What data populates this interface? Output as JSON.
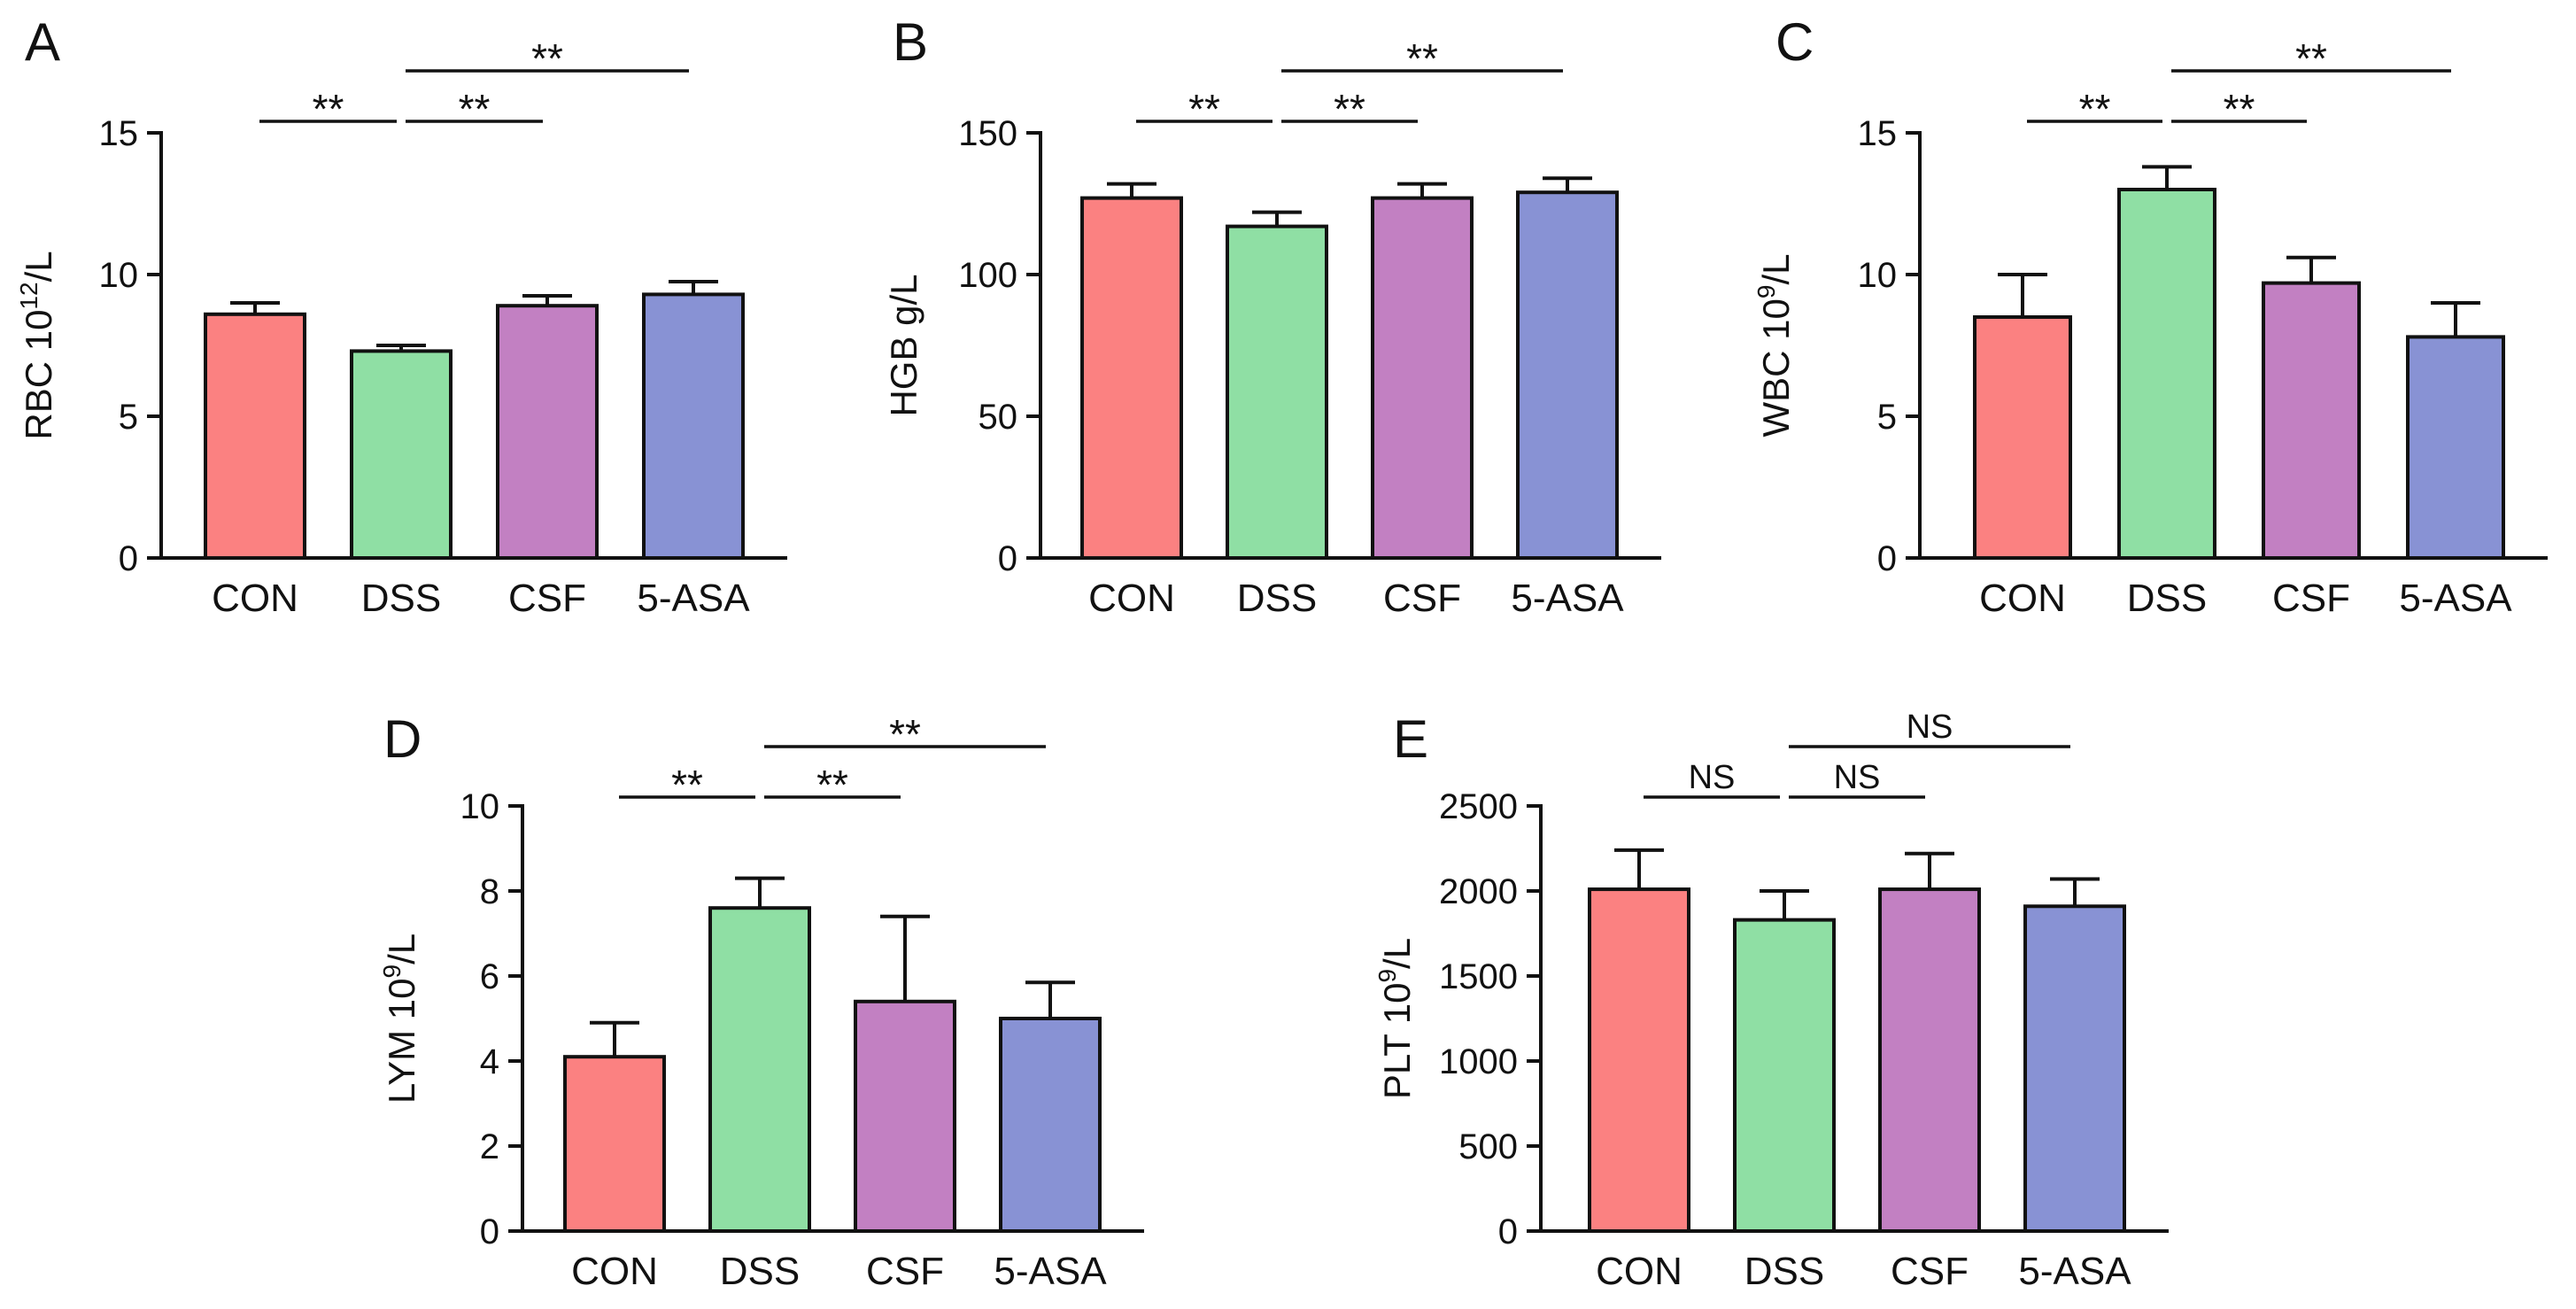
{
  "colors": {
    "CON": "#fb8181",
    "DSS": "#8fdfa4",
    "CSF": "#c280c2",
    "5-ASA": "#8892d4",
    "axis": "#111111"
  },
  "chart_data": [
    {
      "panel": "A",
      "type": "bar",
      "categories": [
        "CON",
        "DSS",
        "CSF",
        "5-ASA"
      ],
      "values": [
        8.6,
        7.3,
        8.9,
        9.3
      ],
      "errors": [
        0.4,
        0.2,
        0.35,
        0.45
      ],
      "ylabel_main": "RBC 10",
      "ylabel_sup": "12",
      "ylabel_tail": "/L",
      "ylim": [
        0,
        15
      ],
      "yticks": [
        0,
        5,
        10,
        15
      ],
      "significance": [
        {
          "from": 0,
          "to": 1,
          "label": "**",
          "level": 1
        },
        {
          "from": 1,
          "to": 2,
          "label": "**",
          "level": 1
        },
        {
          "from": 1,
          "to": 3,
          "label": "**",
          "level": 2
        }
      ]
    },
    {
      "panel": "B",
      "type": "bar",
      "categories": [
        "CON",
        "DSS",
        "CSF",
        "5-ASA"
      ],
      "values": [
        127,
        117,
        127,
        129
      ],
      "errors": [
        5,
        5,
        5,
        5
      ],
      "ylabel_main": "HGB g/L",
      "ylabel_sup": "",
      "ylabel_tail": "",
      "ylim": [
        0,
        150
      ],
      "yticks": [
        0,
        50,
        100,
        150
      ],
      "significance": [
        {
          "from": 0,
          "to": 1,
          "label": "**",
          "level": 1
        },
        {
          "from": 1,
          "to": 2,
          "label": "**",
          "level": 1
        },
        {
          "from": 1,
          "to": 3,
          "label": "**",
          "level": 2
        }
      ]
    },
    {
      "panel": "C",
      "type": "bar",
      "categories": [
        "CON",
        "DSS",
        "CSF",
        "5-ASA"
      ],
      "values": [
        8.5,
        13.0,
        9.7,
        7.8
      ],
      "errors": [
        1.5,
        0.8,
        0.9,
        1.2
      ],
      "ylabel_main": "WBC 10",
      "ylabel_sup": "9",
      "ylabel_tail": "/L",
      "ylim": [
        0,
        15
      ],
      "yticks": [
        0,
        5,
        10,
        15
      ],
      "significance": [
        {
          "from": 0,
          "to": 1,
          "label": "**",
          "level": 1
        },
        {
          "from": 1,
          "to": 2,
          "label": "**",
          "level": 1
        },
        {
          "from": 1,
          "to": 3,
          "label": "**",
          "level": 2
        }
      ]
    },
    {
      "panel": "D",
      "type": "bar",
      "categories": [
        "CON",
        "DSS",
        "CSF",
        "5-ASA"
      ],
      "values": [
        4.1,
        7.6,
        5.4,
        5.0
      ],
      "errors": [
        0.8,
        0.7,
        2.0,
        0.85
      ],
      "ylabel_main": "LYM 10",
      "ylabel_sup": "9",
      "ylabel_tail": "/L",
      "ylim": [
        0,
        10
      ],
      "yticks": [
        0,
        2,
        4,
        6,
        8,
        10
      ],
      "significance": [
        {
          "from": 0,
          "to": 1,
          "label": "**",
          "level": 1
        },
        {
          "from": 1,
          "to": 2,
          "label": "**",
          "level": 1
        },
        {
          "from": 1,
          "to": 3,
          "label": "**",
          "level": 2
        }
      ]
    },
    {
      "panel": "E",
      "type": "bar",
      "categories": [
        "CON",
        "DSS",
        "CSF",
        "5-ASA"
      ],
      "values": [
        2010,
        1830,
        2010,
        1910
      ],
      "errors": [
        230,
        170,
        210,
        160
      ],
      "ylabel_main": "PLT 10",
      "ylabel_sup": "9",
      "ylabel_tail": "/L",
      "ylim": [
        0,
        2500
      ],
      "yticks": [
        0,
        500,
        1000,
        1500,
        2000,
        2500
      ],
      "significance": [
        {
          "from": 0,
          "to": 1,
          "label": "NS",
          "level": 1
        },
        {
          "from": 1,
          "to": 2,
          "label": "NS",
          "level": 1
        },
        {
          "from": 1,
          "to": 3,
          "label": "NS",
          "level": 2
        }
      ]
    }
  ]
}
